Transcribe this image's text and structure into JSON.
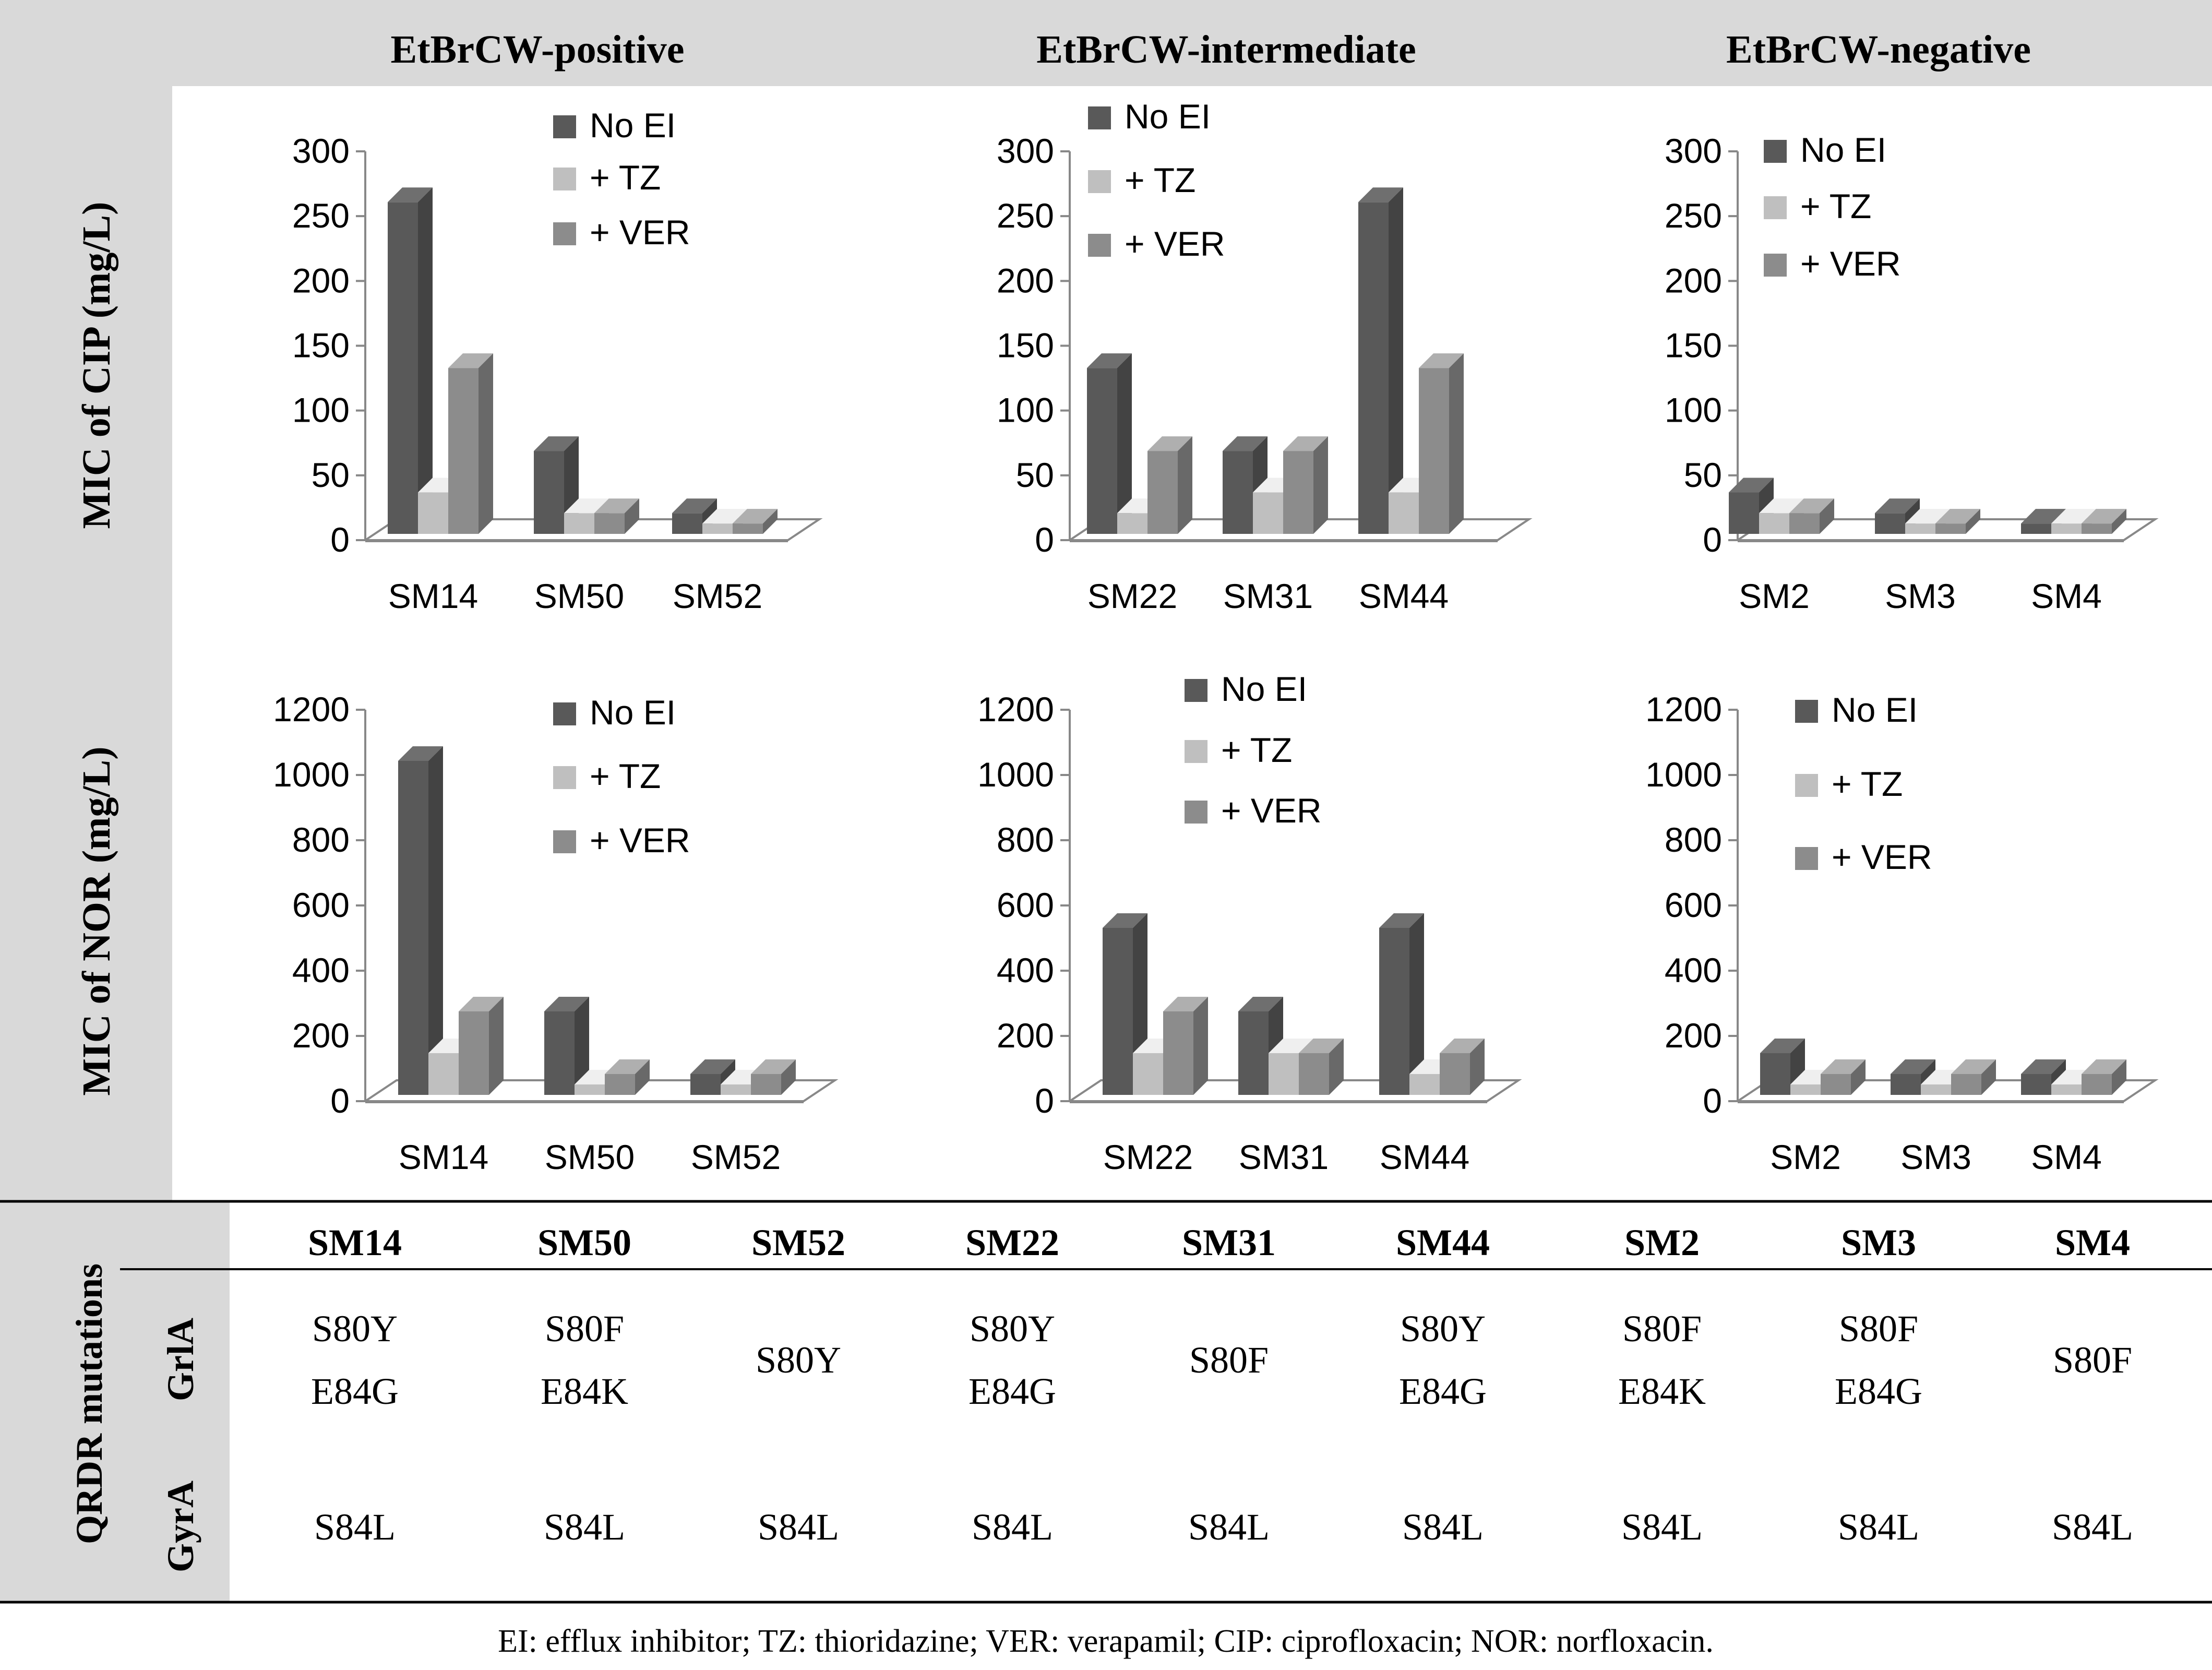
{
  "column_headers": [
    "EtBrCW-positive",
    "EtBrCW-intermediate",
    "EtBrCW-negative"
  ],
  "row_labels": [
    "MIC of CIP (mg/L)",
    "MIC of NOR (mg/L)"
  ],
  "colors": {
    "no_ei": "#595959",
    "tz": "#bfbfbf",
    "ver": "#8c8c8c",
    "panel_gray": "#d9d9d9"
  },
  "chart_data": [
    {
      "type": "bar",
      "title": "EtBrCW-positive",
      "ylabel": "MIC of CIP (mg/L)",
      "categories": [
        "SM14",
        "SM50",
        "SM52"
      ],
      "ylim": [
        0,
        300
      ],
      "yticks": [
        "0",
        "50",
        "100",
        "150",
        "200",
        "250",
        "300"
      ],
      "series": [
        {
          "name": "No EI",
          "values": [
            256,
            64,
            16
          ]
        },
        {
          "name": "+ TZ",
          "values": [
            32,
            16,
            8
          ]
        },
        {
          "name": "+ VER",
          "values": [
            128,
            16,
            8
          ]
        }
      ]
    },
    {
      "type": "bar",
      "title": "EtBrCW-intermediate",
      "ylabel": "MIC of CIP (mg/L)",
      "categories": [
        "SM22",
        "SM31",
        "SM44"
      ],
      "ylim": [
        0,
        300
      ],
      "yticks": [
        "0",
        "50",
        "100",
        "150",
        "200",
        "250",
        "300"
      ],
      "series": [
        {
          "name": "No EI",
          "values": [
            128,
            64,
            256
          ]
        },
        {
          "name": "+ TZ",
          "values": [
            16,
            32,
            32
          ]
        },
        {
          "name": "+ VER",
          "values": [
            64,
            64,
            128
          ]
        }
      ]
    },
    {
      "type": "bar",
      "title": "EtBrCW-negative",
      "ylabel": "MIC of CIP (mg/L)",
      "categories": [
        "SM2",
        "SM3",
        "SM4"
      ],
      "ylim": [
        0,
        300
      ],
      "yticks": [
        "0",
        "50",
        "100",
        "150",
        "200",
        "250",
        "300"
      ],
      "series": [
        {
          "name": "No EI",
          "values": [
            32,
            16,
            8
          ]
        },
        {
          "name": "+ TZ",
          "values": [
            16,
            8,
            8
          ]
        },
        {
          "name": "+ VER",
          "values": [
            16,
            8,
            8
          ]
        }
      ]
    },
    {
      "type": "bar",
      "title": "EtBrCW-positive",
      "ylabel": "MIC of NOR (mg/L)",
      "categories": [
        "SM14",
        "SM50",
        "SM52"
      ],
      "ylim": [
        0,
        1200
      ],
      "yticks": [
        "0",
        "200",
        "400",
        "600",
        "800",
        "1000",
        "1200"
      ],
      "series": [
        {
          "name": "No EI",
          "values": [
            1024,
            256,
            64
          ]
        },
        {
          "name": "+ TZ",
          "values": [
            128,
            32,
            32
          ]
        },
        {
          "name": "+ VER",
          "values": [
            256,
            64,
            64
          ]
        }
      ]
    },
    {
      "type": "bar",
      "title": "EtBrCW-intermediate",
      "ylabel": "MIC of NOR (mg/L)",
      "categories": [
        "SM22",
        "SM31",
        "SM44"
      ],
      "ylim": [
        0,
        1200
      ],
      "yticks": [
        "0",
        "200",
        "400",
        "600",
        "800",
        "1000",
        "1200"
      ],
      "series": [
        {
          "name": "No EI",
          "values": [
            512,
            256,
            512
          ]
        },
        {
          "name": "+ TZ",
          "values": [
            128,
            128,
            64
          ]
        },
        {
          "name": "+ VER",
          "values": [
            256,
            128,
            128
          ]
        }
      ]
    },
    {
      "type": "bar",
      "title": "EtBrCW-negative",
      "ylabel": "MIC of NOR (mg/L)",
      "categories": [
        "SM2",
        "SM3",
        "SM4"
      ],
      "ylim": [
        0,
        1200
      ],
      "yticks": [
        "0",
        "200",
        "400",
        "600",
        "800",
        "1000",
        "1200"
      ],
      "series": [
        {
          "name": "No EI",
          "values": [
            128,
            64,
            64
          ]
        },
        {
          "name": "+ TZ",
          "values": [
            32,
            32,
            32
          ]
        },
        {
          "name": "+ VER",
          "values": [
            64,
            64,
            64
          ]
        }
      ]
    }
  ],
  "table": {
    "title": "QRDR mutations",
    "strains": [
      "SM14",
      "SM50",
      "SM52",
      "SM22",
      "SM31",
      "SM44",
      "SM2",
      "SM3",
      "SM4"
    ],
    "rows": [
      {
        "gene": "GrlA",
        "values": [
          [
            "S80Y",
            "E84G"
          ],
          [
            "S80F",
            "E84K"
          ],
          [
            "S80Y"
          ],
          [
            "S80Y",
            "E84G"
          ],
          [
            "S80F"
          ],
          [
            "S80Y",
            "E84G"
          ],
          [
            "S80F",
            "E84K"
          ],
          [
            "S80F",
            "E84G"
          ],
          [
            "S80F"
          ]
        ]
      },
      {
        "gene": "GyrA",
        "values": [
          [
            "S84L"
          ],
          [
            "S84L"
          ],
          [
            "S84L"
          ],
          [
            "S84L"
          ],
          [
            "S84L"
          ],
          [
            "S84L"
          ],
          [
            "S84L"
          ],
          [
            "S84L"
          ],
          [
            "S84L"
          ]
        ]
      }
    ]
  },
  "footnote": "EI: efflux inhibitor; TZ: thioridazine; VER: verapamil; CIP: ciprofloxacin; NOR: norfloxacin."
}
